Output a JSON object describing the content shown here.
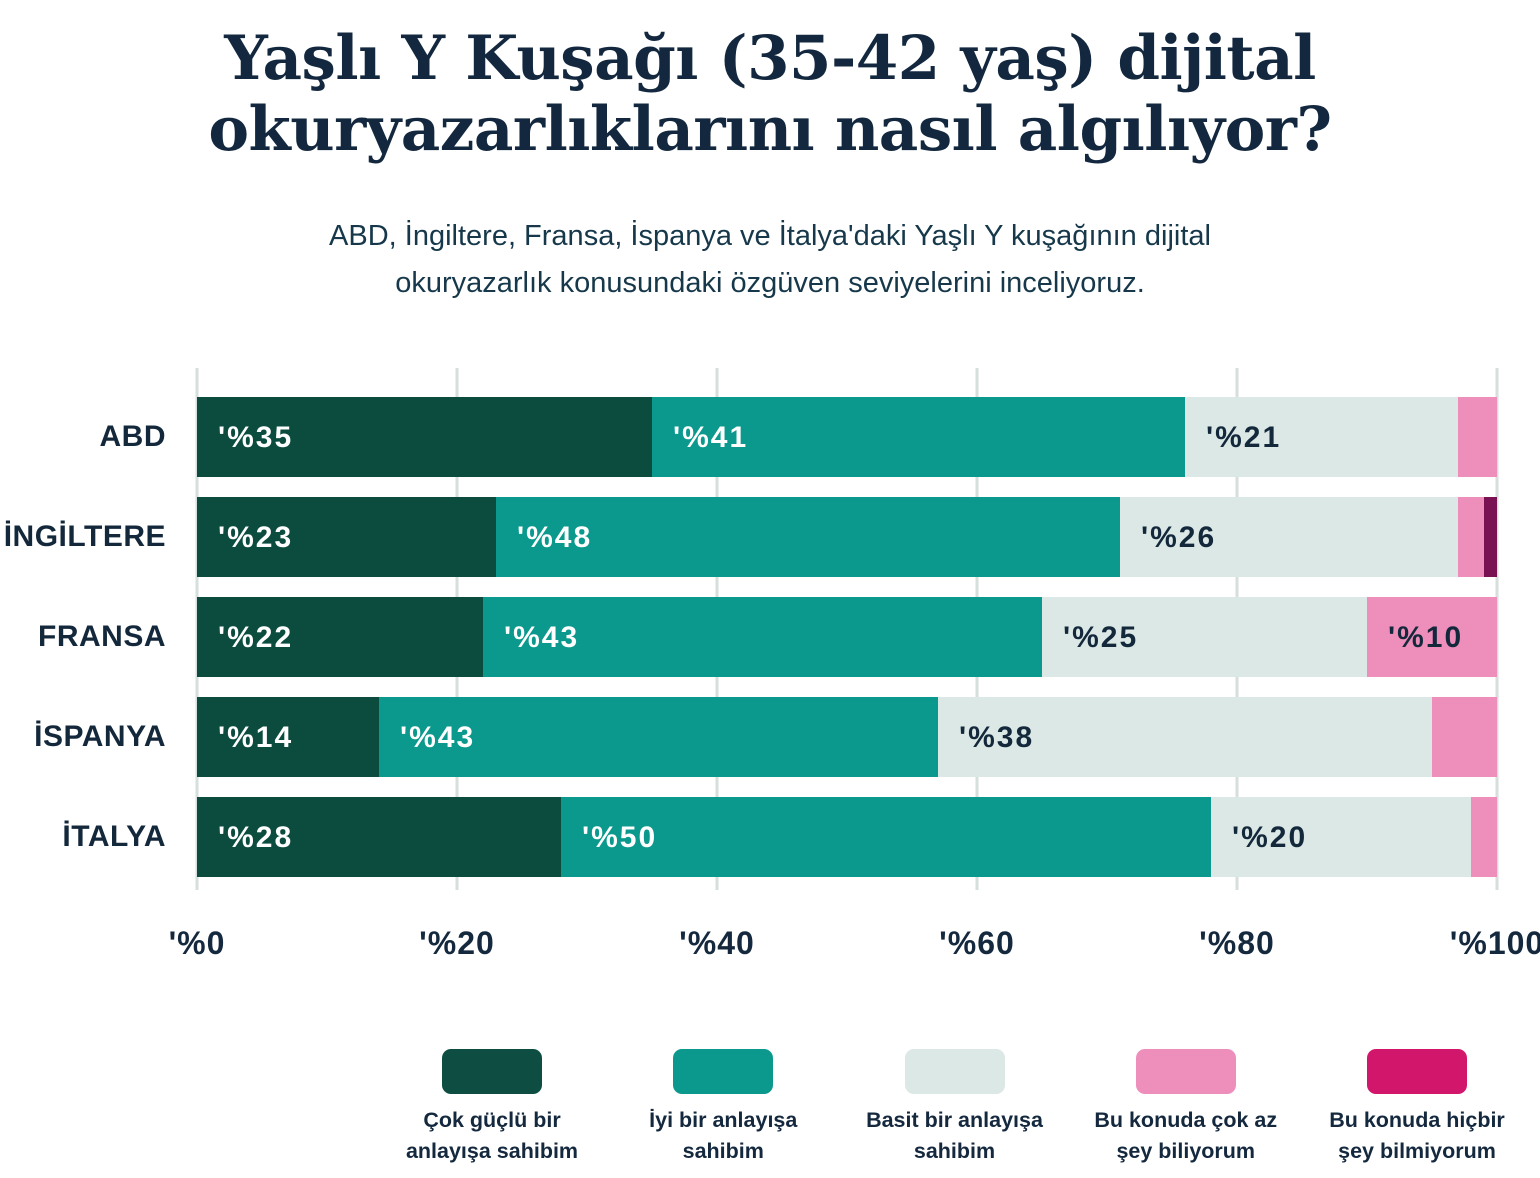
{
  "title": {
    "line1": "Yaşlı Y Kuşağı (35-42 yaş) dijital",
    "line2": "okuryazarlıklarını nasıl algılıyor?"
  },
  "subtitle": {
    "line1": "ABD, İngiltere, Fransa, İspanya ve İtalya'daki Yaşlı Y kuşağının dijital",
    "line2": "okuryazarlık konusundaki özgüven seviyelerini inceliyoruz."
  },
  "chart_data": {
    "type": "bar",
    "orientation": "horizontal-stacked",
    "categories": [
      "ABD",
      "İNGİLTERE",
      "FRANSA",
      "İSPANYA",
      "İTALYA"
    ],
    "series": [
      {
        "name": "Çok güçlü bir anlayışa sahibim",
        "color": "#0b4c3f",
        "values": [
          35,
          23,
          22,
          14,
          28
        ]
      },
      {
        "name": "İyi bir anlayışa sahibim",
        "color": "#0a998c",
        "values": [
          41,
          48,
          43,
          43,
          50
        ]
      },
      {
        "name": "Basit bir anlayışa sahibim",
        "color": "#dbe8e5",
        "values": [
          21,
          26,
          25,
          38,
          20
        ]
      },
      {
        "name": "Bu konuda çok az şey biliyorum",
        "color": "#ee8ebb",
        "values": [
          3,
          2,
          10,
          5,
          2
        ]
      },
      {
        "name": "Bu konuda hiçbir şey bilmiyorum",
        "color": "#7a1152",
        "values": [
          0,
          1,
          0,
          0,
          0
        ]
      }
    ],
    "value_label_prefix": "'%",
    "value_label_min": 10,
    "label_text_style": [
      "light",
      "light",
      "dark",
      "dark",
      "dark"
    ],
    "xticks": [
      "'%0",
      "'%20",
      "'%40",
      "'%60",
      "'%80",
      "'%100"
    ],
    "xlim": [
      0,
      100
    ],
    "grid": true,
    "gridline_color": "#d5dfdc",
    "legend_position": "bottom"
  },
  "legend": {
    "items": [
      {
        "color": "#0d4d42",
        "line1": "Çok güçlü bir",
        "line2": "anlayışa sahibim"
      },
      {
        "color": "#0a998c",
        "line1": "İyi bir anlayışa",
        "line2": "sahibim"
      },
      {
        "color": "#dbe8e5",
        "line1": "Basit bir anlayışa",
        "line2": "sahibim"
      },
      {
        "color": "#ee8ebb",
        "line1": "Bu konuda çok az",
        "line2": "şey biliyorum"
      },
      {
        "color": "#d2166b",
        "line1": "Bu konuda hiçbir",
        "line2": "şey bilmiyorum"
      }
    ]
  },
  "layout_colors": {
    "background": "#ffffff",
    "title_text": "#13283f",
    "subtitle_text": "#16384a",
    "axis_text": "#14283e"
  }
}
